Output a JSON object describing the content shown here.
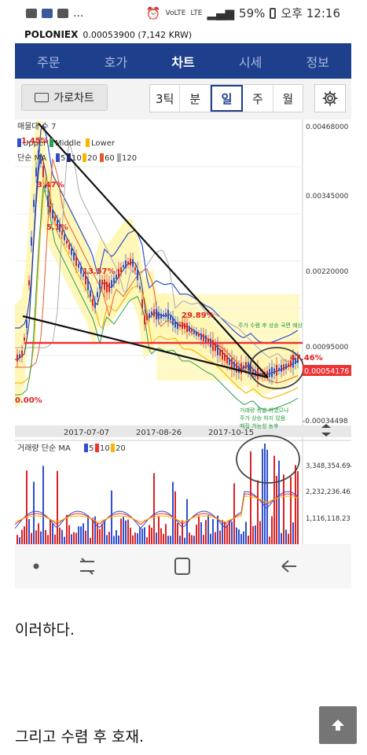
{
  "statusbar": {
    "battery": "59%",
    "time": "오후 12:16",
    "network": "LTE",
    "volte": "VoLTE",
    "more": "..."
  },
  "price": {
    "exchange": "POLONIEX",
    "value": "0.00053900 (7,142 KRW)"
  },
  "tabs": [
    {
      "label": "주문",
      "active": false
    },
    {
      "label": "호가",
      "active": false
    },
    {
      "label": "차트",
      "active": true
    },
    {
      "label": "시세",
      "active": false
    },
    {
      "label": "정보",
      "active": false
    }
  ],
  "toolbar": {
    "landscape_label": "가로차트",
    "segments": [
      {
        "label": "3틱",
        "active": false
      },
      {
        "label": "분",
        "active": false
      },
      {
        "label": "일",
        "active": true
      },
      {
        "label": "주",
        "active": false
      },
      {
        "label": "월",
        "active": false
      }
    ]
  },
  "chart_data": {
    "type": "candlestick",
    "legend": {
      "indicator": "매물대 수 7",
      "bollinger": [
        "Upper",
        "Middle",
        "Lower"
      ],
      "ma_label": "단순 MA",
      "ma_periods": [
        "5",
        "10",
        "20",
        "60",
        "120"
      ]
    },
    "price_axis": [
      "0.00468000",
      "0.00345000",
      "0.00220000",
      "0.00095000",
      "-0.00034498"
    ],
    "current_price_label": "0.00054176",
    "x_axis": [
      "2017-07-07",
      "2017-08-26",
      "2017-10-15"
    ],
    "percent_labels": [
      "1.45%",
      "3.47%",
      "5.1%",
      "13.57%",
      "29.89%",
      "47.46%",
      "0.00%"
    ],
    "annotations": [
      "주가 수렴 후 상승 국면 예상",
      "거래량 폭발 하였으나",
      "주가 상승 하지 않음.",
      "매집 가능성 농후"
    ],
    "volume": {
      "label": "거래량 단순 MA",
      "ma_periods": [
        "5",
        "10",
        "20"
      ],
      "axis": [
        "3,348,354.694",
        "2,232,236.463",
        "1,116,118.231"
      ]
    }
  },
  "post": {
    "line1": "이러하다.",
    "line2": "그리고 수렴 후 호재."
  }
}
